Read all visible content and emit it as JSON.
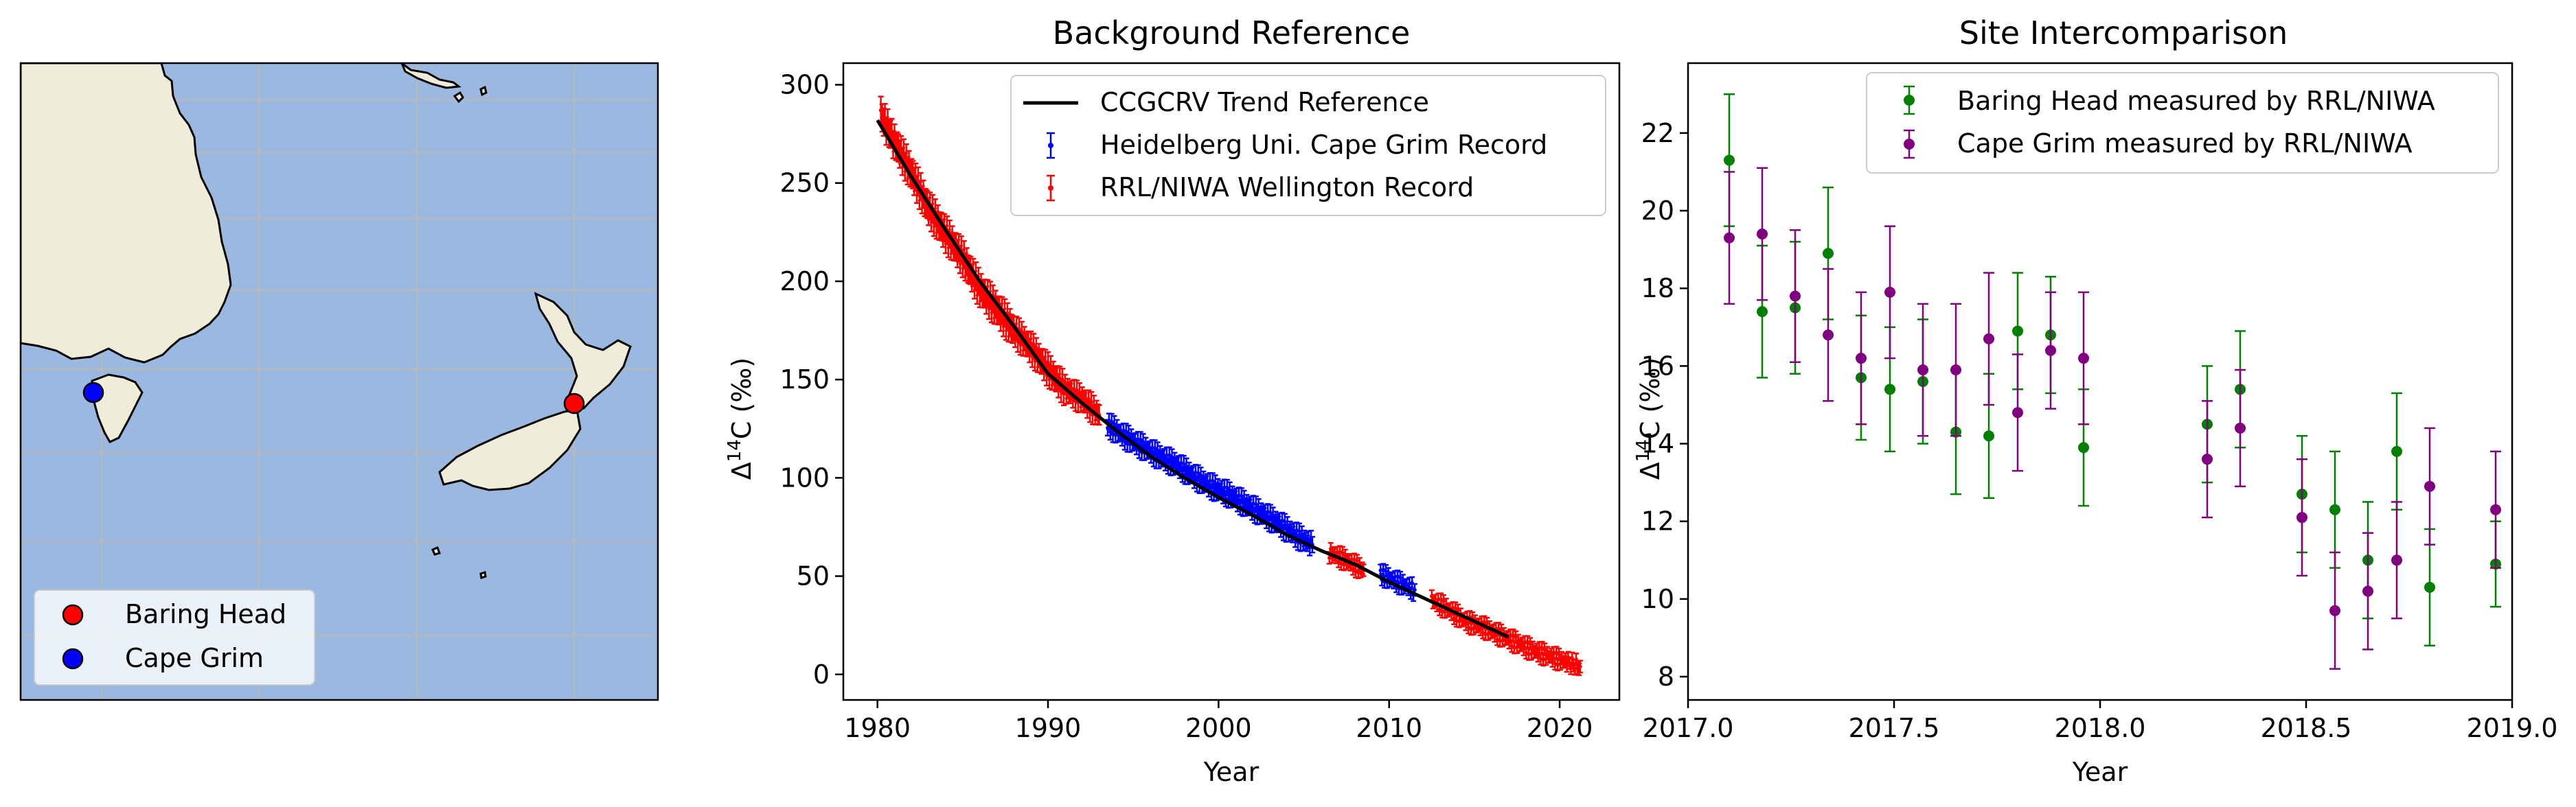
{
  "colors": {
    "ocean": "#9ab8e0",
    "land": "#f0ecda",
    "grid": "#b8b8b8",
    "trend": "#000000",
    "heidelberg": "#0000ff",
    "rrl_niwa": "#ff0000",
    "baring_head_site": "#008000",
    "cape_grim_site": "#800080"
  },
  "map": {
    "legend": [
      {
        "label": "Baring Head",
        "color": "#ff0000",
        "icon": "circle-marker-icon"
      },
      {
        "label": "Cape Grim",
        "color": "#0000ff",
        "icon": "circle-marker-icon"
      }
    ],
    "sites": [
      {
        "name": "Baring Head",
        "color": "#ff0000"
      },
      {
        "name": "Cape Grim",
        "color": "#0000ff"
      }
    ]
  },
  "chart_data": [
    {
      "panel": "background-reference",
      "type": "line",
      "title": "Background Reference",
      "xlabel": "Year",
      "ylabel": "Δ14C (‰)",
      "xlim": [
        1978,
        2023.5
      ],
      "ylim": [
        -13,
        311
      ],
      "xticks": [
        1980,
        1990,
        2000,
        2010,
        2020
      ],
      "yticks": [
        0,
        50,
        100,
        150,
        200,
        250,
        300
      ],
      "legend_position": "top-right",
      "legend": [
        "CCGCRV Trend Reference",
        "Heidelberg Uni. Cape Grim Record",
        "RRL/NIWA Wellington Record"
      ],
      "series": [
        {
          "name": "CCGCRV Trend Reference",
          "style": "line",
          "color": "#000000",
          "x": [
            1980,
            1982,
            1984,
            1986,
            1988,
            1990,
            1992,
            1994,
            1996,
            1998,
            2000,
            2002,
            2004,
            2006,
            2008,
            2010,
            2012,
            2014,
            2016,
            2017
          ],
          "y": [
            282,
            253,
            226,
            200,
            177,
            153,
            138,
            124,
            111,
            100,
            90,
            81,
            71,
            63,
            56,
            47,
            39,
            31,
            23,
            19
          ]
        },
        {
          "name": "Heidelberg Uni. Cape Grim Record",
          "style": "errorbar",
          "color": "#0000ff",
          "x": [
            1993.5,
            1994.5,
            1995.5,
            1996.5,
            1997.5,
            1998.5,
            1999.5,
            2000.5,
            2001.5,
            2002.5,
            2003.5,
            2004.5,
            2005.5,
            2009.5,
            2010.5,
            2011.5
          ],
          "y": [
            127,
            121,
            116,
            111,
            107,
            101,
            96,
            92,
            87,
            82,
            77,
            71,
            66,
            51,
            47,
            43
          ],
          "err": [
            4,
            4,
            4,
            4,
            4,
            4,
            4,
            4,
            4,
            4,
            4,
            4,
            4,
            3,
            3,
            3
          ]
        },
        {
          "name": "RRL/NIWA Wellington Record",
          "style": "errorbar",
          "color": "#ff0000",
          "x": [
            1980.2,
            1981,
            1982,
            1983,
            1984,
            1985,
            1986,
            1987,
            1988,
            1989,
            1990,
            1991,
            1992,
            1993,
            2006.5,
            2007.5,
            2008.5,
            2012.5,
            2013.5,
            2014.5,
            2015.5,
            2016.5,
            2017.5,
            2018.5,
            2019.5,
            2020.5,
            2021.2
          ],
          "y": [
            285,
            271,
            255,
            237,
            224,
            212,
            196,
            186,
            175,
            166,
            155,
            145,
            140,
            132,
            62,
            58,
            53,
            38,
            33,
            27,
            24,
            20,
            16,
            12,
            9,
            6,
            4
          ],
          "err": [
            7,
            7,
            7,
            7,
            7,
            7,
            7,
            7,
            6,
            6,
            6,
            5,
            5,
            5,
            3,
            3,
            3,
            3,
            3,
            3,
            3,
            3,
            3,
            3,
            3,
            3,
            3
          ]
        }
      ]
    },
    {
      "panel": "site-intercomparison",
      "type": "scatter",
      "title": "Site Intercomparison",
      "xlabel": "Year",
      "ylabel": "Δ14C (‰)",
      "xlim": [
        2017.0,
        2019.0
      ],
      "ylim": [
        7.4,
        23.8
      ],
      "xticks": [
        2017.0,
        2017.5,
        2018.0,
        2018.5,
        2019.0
      ],
      "xticklabels": [
        "2017.0",
        "2017.5",
        "2018.0",
        "2018.5",
        "2019.0"
      ],
      "yticks": [
        8,
        10,
        12,
        14,
        16,
        18,
        20,
        22
      ],
      "legend_position": "top-right",
      "legend": [
        "Baring Head measured by RRL/NIWA",
        "Cape Grim measured by RRL/NIWA"
      ],
      "series": [
        {
          "name": "Baring Head measured by RRL/NIWA",
          "color": "#008000",
          "x": [
            2017.1,
            2017.18,
            2017.26,
            2017.34,
            2017.42,
            2017.49,
            2017.57,
            2017.65,
            2017.73,
            2017.8,
            2017.88,
            2017.96,
            2018.26,
            2018.34,
            2018.49,
            2018.57,
            2018.65,
            2018.72,
            2018.8,
            2018.96
          ],
          "y": [
            21.3,
            17.4,
            17.5,
            18.9,
            15.7,
            15.4,
            15.6,
            14.3,
            14.2,
            16.9,
            16.8,
            13.9,
            14.5,
            15.4,
            12.7,
            12.3,
            11.0,
            13.8,
            10.3,
            10.9
          ],
          "err": [
            1.7,
            1.7,
            1.7,
            1.7,
            1.6,
            1.6,
            1.6,
            1.6,
            1.6,
            1.5,
            1.5,
            1.5,
            1.5,
            1.5,
            1.5,
            1.5,
            1.5,
            1.5,
            1.5,
            1.1
          ]
        },
        {
          "name": "Cape Grim measured by RRL/NIWA",
          "color": "#800080",
          "x": [
            2017.1,
            2017.18,
            2017.26,
            2017.34,
            2017.42,
            2017.49,
            2017.57,
            2017.65,
            2017.73,
            2017.8,
            2017.88,
            2017.96,
            2018.26,
            2018.34,
            2018.49,
            2018.57,
            2018.65,
            2018.72,
            2018.8,
            2018.96
          ],
          "y": [
            19.3,
            19.4,
            17.8,
            16.8,
            16.2,
            17.9,
            15.9,
            15.9,
            16.7,
            14.8,
            16.4,
            16.2,
            13.6,
            14.4,
            12.1,
            9.7,
            10.2,
            11.0,
            12.9,
            12.3
          ],
          "err": [
            1.7,
            1.7,
            1.7,
            1.7,
            1.7,
            1.7,
            1.7,
            1.7,
            1.7,
            1.5,
            1.5,
            1.7,
            1.5,
            1.5,
            1.5,
            1.5,
            1.5,
            1.5,
            1.5,
            1.5
          ]
        }
      ]
    }
  ]
}
